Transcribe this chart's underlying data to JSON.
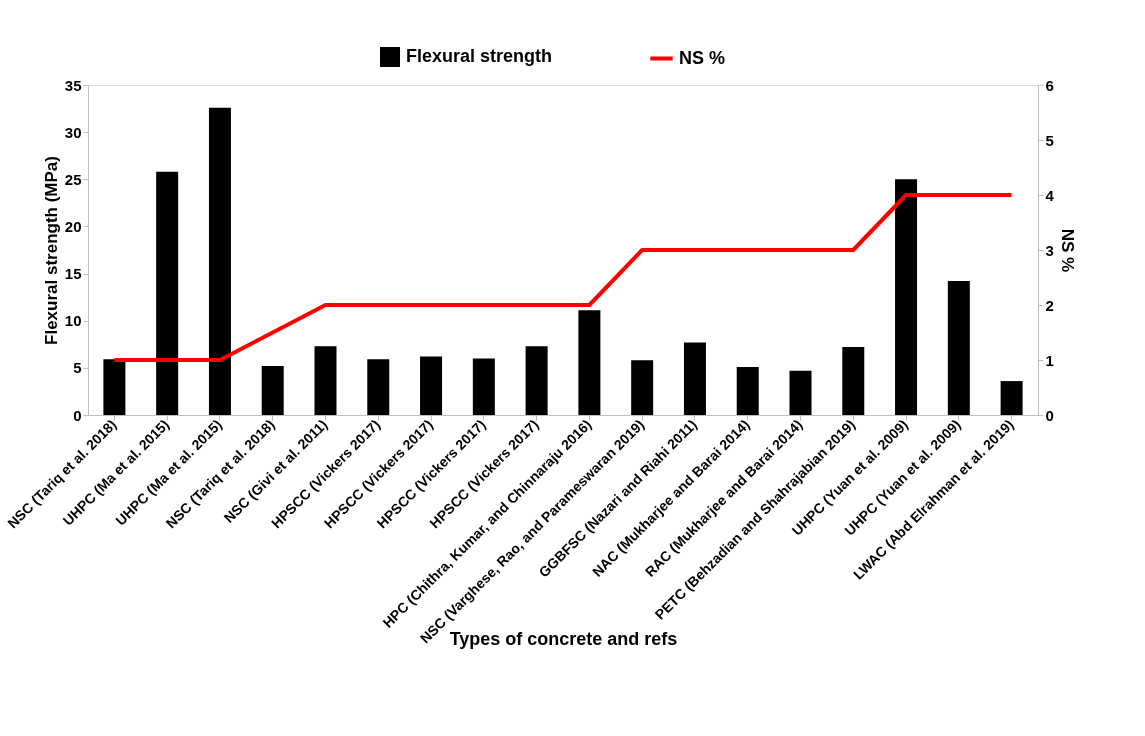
{
  "chart_data": {
    "type": "bar",
    "xlabel": "Types of concrete and refs",
    "ylabel": "Flexural strength (MPa)",
    "y2label": "NS %",
    "categories": [
      "NSC (Tariq et al. 2018)",
      "UHPC (Ma et al. 2015)",
      "UHPC (Ma et al. 2015)",
      "NSC (Tariq et al. 2018)",
      "NSC (Givi et al. 2011)",
      "HPSCC (Vickers 2017)",
      "HPSCC (Vickers 2017)",
      "HPSCC (Vickers 2017)",
      "HPSCC (Vickers 2017)",
      "HPC (Chithra, Kumar, and Chinnaraju 2016)",
      "NSC (Varghese, Rao, and Parameswaran 2019)",
      "GGBFSC (Nazari and Riahi 2011)",
      "NAC (Mukharjee and Barai 2014)",
      "RAC (Mukharjee and Barai 2014)",
      "PETC (Behzadian and Shahrajabian 2019)",
      "UHPC (Yuan et al. 2009)",
      "UHPC (Yuan et al. 2009)",
      "LWAC (Abd Elrahman et al. 2019)"
    ],
    "series": [
      {
        "name": "Flexural strength",
        "color": "#000000",
        "values": [
          5.9,
          25.8,
          32.6,
          5.2,
          7.3,
          5.9,
          6.2,
          6.0,
          7.3,
          11.1,
          5.8,
          7.7,
          5.1,
          4.7,
          7.2,
          25.0,
          14.2,
          3.6
        ]
      },
      {
        "name": "NS %",
        "type": "line",
        "axis": "y2",
        "color": "#ff0000",
        "values": [
          1,
          1,
          1,
          1.5,
          2,
          2,
          2,
          2,
          2,
          2,
          3,
          3,
          3,
          3,
          3,
          4,
          4,
          4
        ]
      }
    ],
    "ylim": [
      0,
      35
    ],
    "yticks": [
      0,
      5,
      10,
      15,
      20,
      25,
      30,
      35
    ],
    "y2lim": [
      0,
      6
    ],
    "y2ticks": [
      0,
      1,
      2,
      3,
      4,
      5,
      6
    ],
    "grid": false,
    "legend": "top",
    "marker": "none",
    "line_style": "solid"
  }
}
